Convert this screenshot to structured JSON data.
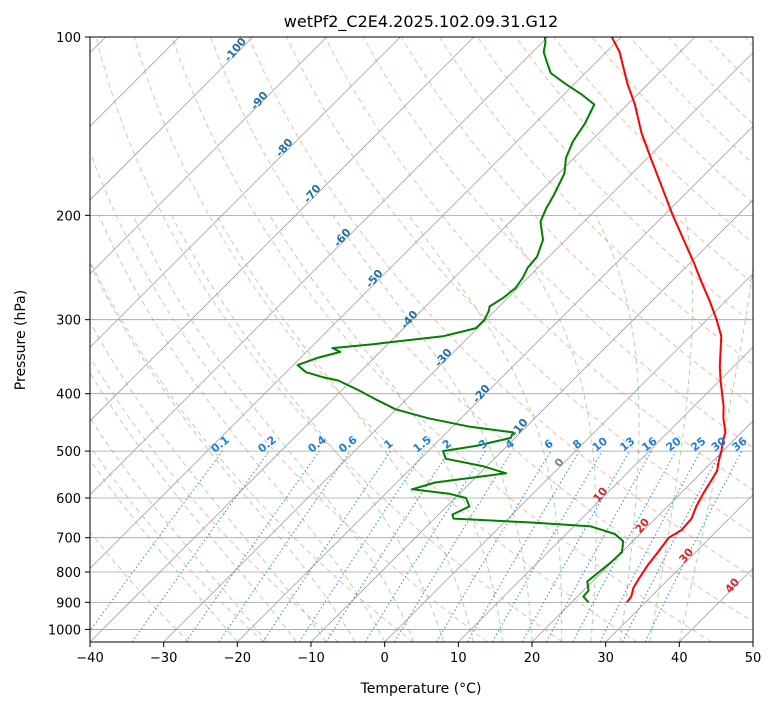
{
  "chart_data": {
    "type": "line",
    "title": "wetPf2_C2E4.2025.102.09.31.G12",
    "xlabel": "Temperature (°C)",
    "ylabel": "Pressure (hPa)",
    "xlim": [
      -40,
      50
    ],
    "ylim": [
      1050,
      100
    ],
    "y_scale": "log",
    "x_ticks": [
      -40,
      -30,
      -20,
      -10,
      0,
      10,
      20,
      30,
      40,
      50
    ],
    "y_ticks": [
      100,
      200,
      300,
      400,
      500,
      600,
      700,
      800,
      900,
      1000
    ],
    "grid": true,
    "diagram": "skew-T log-p",
    "colors": {
      "temperature": "#ff0000",
      "dewpoint": "#008000",
      "isotherm": "#a0a0a0",
      "dry_adiabat": "#ff8866",
      "moist_adiabat": "#77bb77",
      "mixing_ratio": "#1e7fd6",
      "dry_adiabat_label": "#1f6fa8",
      "isotherm_label": "#d62728"
    },
    "series": [
      {
        "key": "temperature",
        "p": [
          900,
          880,
          850,
          820,
          780,
          740,
          700,
          680,
          650,
          620,
          590,
          560,
          540,
          520,
          500,
          480,
          465,
          440,
          420,
          400,
          380,
          360,
          340,
          320,
          300,
          280,
          260,
          240,
          220,
          200,
          180,
          160,
          145,
          130,
          120,
          112,
          106,
          100
        ],
        "t": [
          27.5,
          27.3,
          26.4,
          25.9,
          25.3,
          24.9,
          24.4,
          25.1,
          24.9,
          23.9,
          23.1,
          22.4,
          21.9,
          20.8,
          19.8,
          18.6,
          17.8,
          15.6,
          14.0,
          12.1,
          10.1,
          8.1,
          6.2,
          4.2,
          1.3,
          -2.0,
          -5.7,
          -9.6,
          -14.0,
          -18.8,
          -23.9,
          -29.6,
          -34.3,
          -39.0,
          -42.8,
          -45.8,
          -48.2,
          -51.3
        ]
      },
      {
        "key": "dewpoint",
        "p": [
          900,
          880,
          860,
          830,
          800,
          770,
          740,
          710,
          690,
          670,
          660,
          650,
          640,
          620,
          600,
          590,
          580,
          565,
          545,
          530,
          515,
          500,
          490,
          475,
          465,
          455,
          440,
          425,
          410,
          395,
          380,
          375,
          368,
          358,
          348,
          340,
          335,
          330,
          320,
          310,
          300,
          290,
          285,
          275,
          265,
          255,
          245,
          235,
          220,
          205,
          195,
          185,
          170,
          160,
          150,
          140,
          130,
          125,
          120,
          115,
          110,
          106,
          102,
          100
        ],
        "t": [
          22.3,
          20.8,
          20.7,
          19.3,
          19.6,
          19.9,
          20.0,
          18.7,
          16.6,
          12.3,
          3.7,
          -7.4,
          -8.1,
          -6.9,
          -8.5,
          -11.4,
          -17.0,
          -14.8,
          -6.4,
          -10.6,
          -16.6,
          -18.0,
          -14.2,
          -10.6,
          -11.0,
          -17.6,
          -24.5,
          -30.1,
          -33.9,
          -37.6,
          -41.8,
          -44.4,
          -47.3,
          -49.4,
          -47.7,
          -45.4,
          -47.0,
          -42.0,
          -33.6,
          -30.2,
          -30.2,
          -30.8,
          -31.3,
          -30.6,
          -30.3,
          -30.7,
          -31.4,
          -31.6,
          -33.1,
          -35.9,
          -36.9,
          -37.7,
          -39.2,
          -41.1,
          -42.4,
          -43.2,
          -44.5,
          -47.6,
          -51.2,
          -54.7,
          -56.8,
          -58.5,
          -59.6,
          -60.4
        ]
      }
    ],
    "dry_adiabat_labels": [
      "-100",
      "-90",
      "-80",
      "-70",
      "-60",
      "-50",
      "-40",
      "-30",
      "-20",
      "-10",
      "0",
      "10",
      "20",
      "30",
      "40"
    ],
    "mixing_ratio_labels": [
      "0.1",
      "0.2",
      "0.4",
      "0.6",
      "1",
      "1.5",
      "2",
      "3",
      "4",
      "6",
      "8",
      "10",
      "13",
      "16",
      "20",
      "25",
      "30",
      "36"
    ]
  }
}
